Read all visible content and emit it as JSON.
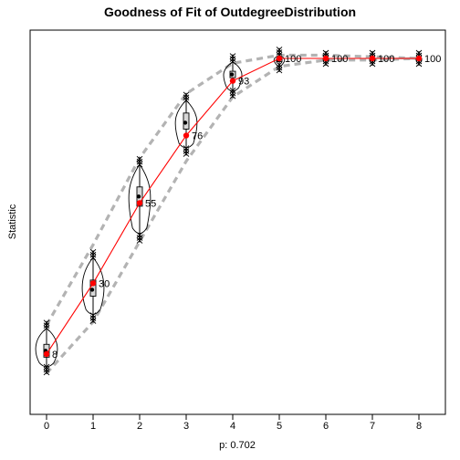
{
  "chart_data": {
    "type": "line",
    "title": "Goodness of Fit of OutdegreeDistribution",
    "xlabel": "p: 0.702",
    "ylabel": "Statistic",
    "x": [
      0,
      1,
      2,
      3,
      4,
      5,
      6,
      7,
      8
    ],
    "x_tick_labels": [
      "0",
      "1",
      "2",
      "3",
      "4",
      "5",
      "6",
      "7",
      "8"
    ],
    "y_ticks_shown": false,
    "ylim": [
      0,
      100
    ],
    "series": [
      {
        "observed": true,
        "values": [
          8,
          30,
          55,
          76,
          93,
          100,
          100,
          100,
          100
        ],
        "color": "#ff0000"
      }
    ],
    "point_labels": [
      "8",
      "30",
      "55",
      "76",
      "93",
      "100",
      "100",
      "100",
      "100"
    ],
    "simulated": {
      "medians": [
        9,
        28,
        57,
        80,
        95,
        99.5,
        100,
        100,
        100
      ],
      "box_q1": [
        7,
        26,
        54,
        78,
        94,
        99,
        100,
        100,
        100
      ],
      "box_q3": [
        11,
        31,
        60,
        83,
        96,
        100,
        100,
        100,
        100
      ],
      "whisker_low": [
        4,
        20,
        45,
        72,
        90,
        98,
        100,
        100,
        100
      ],
      "whisker_high": [
        16,
        38,
        67,
        87,
        99,
        101,
        100,
        100,
        100
      ],
      "band_lower": [
        2,
        18,
        43,
        68,
        88,
        97.5,
        99.5,
        99.5,
        100
      ],
      "band_upper": [
        17,
        42,
        69,
        89,
        98.5,
        101,
        101,
        100.5,
        100
      ],
      "band_color": "#b3b3b3",
      "violin_color": "#000000"
    }
  }
}
